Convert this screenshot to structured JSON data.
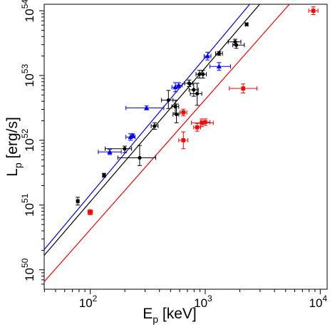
{
  "chart_data": {
    "type": "scatter",
    "title": "",
    "xscale": "log",
    "yscale": "log",
    "xlim_log10": [
      1.6,
      4.06
    ],
    "ylim_log10": [
      49.7,
      54.1
    ],
    "xlabel": {
      "main": "E",
      "sub": "p",
      "rest": " [keV]"
    },
    "ylabel": {
      "main": "L",
      "sub": "p",
      "rest": " [erg/s]"
    },
    "x_ticks": [
      {
        "value_log10": 2,
        "base": "10",
        "exp": "2"
      },
      {
        "value_log10": 3,
        "base": "10",
        "exp": "3"
      },
      {
        "value_log10": 4,
        "base": "10",
        "exp": "4"
      }
    ],
    "y_ticks": [
      {
        "value_log10": 50,
        "base": "10",
        "exp": "50"
      },
      {
        "value_log10": 51,
        "base": "10",
        "exp": "51"
      },
      {
        "value_log10": 52,
        "base": "10",
        "exp": "52"
      },
      {
        "value_log10": 53,
        "base": "10",
        "exp": "53"
      },
      {
        "value_log10": 54,
        "base": "10",
        "exp": "54"
      }
    ],
    "grid": false,
    "colors": {
      "black": "#000000",
      "blue": "#0000ff",
      "red": "#ff0000"
    },
    "series": [
      {
        "color": "#000000",
        "marker": "circle",
        "fit_line": {
          "intercept_log10": 46.91,
          "slope": 2.07
        },
        "points": [
          {
            "x": 1.892,
            "y": 51.06,
            "xerr": [
              0.012,
              0.012
            ],
            "yerr": [
              0.06,
              0.06
            ]
          },
          {
            "x": 2.12,
            "y": 51.46,
            "xerr": [
              0.012,
              0.012
            ],
            "yerr": [
              0.03,
              0.03
            ]
          },
          {
            "x": 2.3,
            "y": 51.87,
            "xerr": [
              0.17,
              0.06
            ],
            "yerr": [
              0.06,
              0.04
            ]
          },
          {
            "x": 2.43,
            "y": 51.73,
            "xerr": [
              0.19,
              0.14
            ],
            "yerr": [
              0.12,
              0.19
            ]
          },
          {
            "x": 2.56,
            "y": 52.22,
            "xerr": [
              0.03,
              0.03
            ],
            "yerr": [
              0.05,
              0.05
            ]
          },
          {
            "x": 2.68,
            "y": 52.62,
            "xerr": [
              0.06,
              0.04
            ],
            "yerr": [
              0.13,
              0.15
            ]
          },
          {
            "x": 2.74,
            "y": 52.52,
            "xerr": [
              0.03,
              0.03
            ],
            "yerr": [
              0.1,
              0.1
            ]
          },
          {
            "x": 2.75,
            "y": 52.4,
            "xerr": [
              0.03,
              0.02
            ],
            "yerr": [
              0.13,
              0.16
            ]
          },
          {
            "x": 2.86,
            "y": 52.88,
            "xerr": [
              0.04,
              0.03
            ],
            "yerr": [
              0.05,
              0.05
            ]
          },
          {
            "x": 2.9,
            "y": 52.78,
            "xerr": [
              0.04,
              0.04
            ],
            "yerr": [
              0.1,
              0.1
            ]
          },
          {
            "x": 2.93,
            "y": 52.72,
            "xerr": [
              0.06,
              0.04
            ],
            "yerr": [
              0.18,
              0.16
            ]
          },
          {
            "x": 2.95,
            "y": 53.02,
            "xerr": [
              0.03,
              0.03
            ],
            "yerr": [
              0.06,
              0.06
            ]
          },
          {
            "x": 2.98,
            "y": 53.02,
            "xerr": [
              0.03,
              0.03
            ],
            "yerr": [
              0.06,
              0.06
            ]
          },
          {
            "x": 3.12,
            "y": 53.34,
            "xerr": [
              0.03,
              0.03
            ],
            "yerr": [
              0.03,
              0.03
            ]
          },
          {
            "x": 3.26,
            "y": 53.52,
            "xerr": [
              0.06,
              0.05
            ],
            "yerr": [
              0.04,
              0.04
            ]
          },
          {
            "x": 3.27,
            "y": 53.47,
            "xerr": [
              0.03,
              0.07
            ],
            "yerr": [
              0.05,
              0.05
            ]
          },
          {
            "x": 3.36,
            "y": 53.79,
            "xerr": [
              0.01,
              0.01
            ],
            "yerr": [
              0.02,
              0.02
            ]
          }
        ]
      },
      {
        "color": "#0000ff",
        "marker": "triangle",
        "fit_line": {
          "intercept_log10": 46.92,
          "slope": 2.12
        },
        "points": [
          {
            "x": 2.17,
            "y": 51.82,
            "xerr": [
              0.1,
              0.1
            ],
            "yerr": [
              0.04,
              0.04
            ]
          },
          {
            "x": 2.35,
            "y": 52.05,
            "xerr": [
              0.04,
              0.04
            ],
            "yerr": [
              0.05,
              0.05
            ]
          },
          {
            "x": 2.37,
            "y": 52.07,
            "xerr": [
              0.01,
              0.01
            ],
            "yerr": [
              0.03,
              0.03
            ]
          },
          {
            "x": 2.49,
            "y": 52.5,
            "xerr": [
              0.18,
              0.15
            ],
            "yerr": [
              0.03,
              0.03
            ]
          },
          {
            "x": 2.74,
            "y": 52.82,
            "xerr": [
              0.03,
              0.03
            ],
            "yerr": [
              0.07,
              0.07
            ]
          },
          {
            "x": 2.77,
            "y": 52.85,
            "xerr": [
              0.03,
              0.03
            ],
            "yerr": [
              0.04,
              0.04
            ]
          },
          {
            "x": 3.02,
            "y": 53.3,
            "xerr": [
              0.03,
              0.03
            ],
            "yerr": [
              0.06,
              0.06
            ]
          },
          {
            "x": 3.12,
            "y": 53.14,
            "xerr": [
              0.08,
              0.1
            ],
            "yerr": [
              0.06,
              0.06
            ]
          }
        ]
      },
      {
        "color": "#ff0000",
        "marker": "square",
        "fit_line": {
          "intercept_log10": 46.6,
          "slope": 2.01
        },
        "points": [
          {
            "x": 2.0,
            "y": 50.89,
            "xerr": [
              0.02,
              0.02
            ],
            "yerr": [
              0.04,
              0.04
            ]
          },
          {
            "x": 2.81,
            "y": 52.0,
            "xerr": [
              0.04,
              0.04
            ],
            "yerr": [
              0.13,
              0.13
            ]
          },
          {
            "x": 2.81,
            "y": 52.43,
            "xerr": [
              0.03,
              0.03
            ],
            "yerr": [
              0.05,
              0.05
            ]
          },
          {
            "x": 2.93,
            "y": 52.2,
            "xerr": [
              0.03,
              0.03
            ],
            "yerr": [
              0.06,
              0.06
            ]
          },
          {
            "x": 2.97,
            "y": 52.27,
            "xerr": [
              0.09,
              0.1
            ],
            "yerr": [
              0.06,
              0.06
            ]
          },
          {
            "x": 3.0,
            "y": 52.28,
            "xerr": [
              0.04,
              0.04
            ],
            "yerr": [
              0.05,
              0.05
            ]
          },
          {
            "x": 3.33,
            "y": 52.8,
            "xerr": [
              0.12,
              0.12
            ],
            "yerr": [
              0.07,
              0.07
            ]
          },
          {
            "x": 3.94,
            "y": 54.0,
            "xerr": [
              0.04,
              0.04
            ],
            "yerr": [
              0.06,
              0.06
            ]
          }
        ]
      }
    ]
  }
}
